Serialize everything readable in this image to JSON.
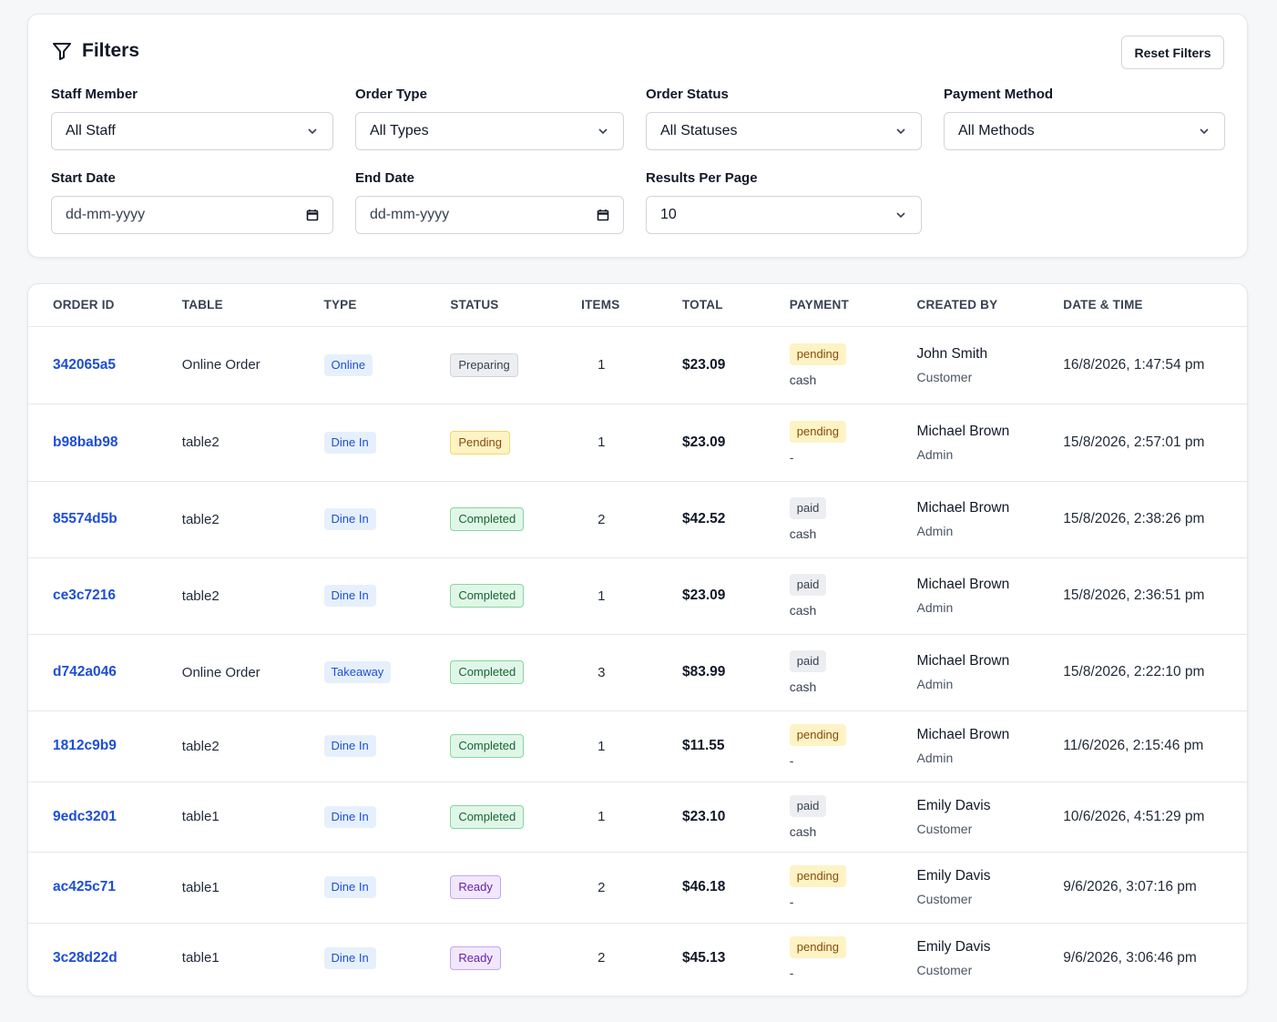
{
  "filters": {
    "title": "Filters",
    "reset_label": "Reset Filters",
    "staff": {
      "label": "Staff Member",
      "value": "All Staff"
    },
    "order_type": {
      "label": "Order Type",
      "value": "All Types"
    },
    "order_status": {
      "label": "Order Status",
      "value": "All Statuses"
    },
    "payment_method": {
      "label": "Payment Method",
      "value": "All Methods"
    },
    "start_date": {
      "label": "Start Date",
      "placeholder": "dd-mm-yyyy"
    },
    "end_date": {
      "label": "End Date",
      "placeholder": "dd-mm-yyyy"
    },
    "per_page": {
      "label": "Results Per Page",
      "value": "10"
    }
  },
  "table": {
    "headers": [
      "ORDER ID",
      "TABLE",
      "TYPE",
      "STATUS",
      "ITEMS",
      "TOTAL",
      "PAYMENT",
      "CREATED BY",
      "DATE & TIME"
    ],
    "rows": [
      {
        "id": "342065a5",
        "table": "Online Order",
        "type": "Online",
        "status": "Preparing",
        "status_color": "gray",
        "items": "1",
        "total": "$23.09",
        "payment_status": "pending",
        "payment_method": "cash",
        "created_by": "John Smith",
        "role": "Customer",
        "datetime": "16/8/2026, 1:47:54 pm"
      },
      {
        "id": "b98bab98",
        "table": "table2",
        "type": "Dine In",
        "status": "Pending",
        "status_color": "yellow",
        "items": "1",
        "total": "$23.09",
        "payment_status": "pending",
        "payment_method": "-",
        "created_by": "Michael Brown",
        "role": "Admin",
        "datetime": "15/8/2026, 2:57:01 pm"
      },
      {
        "id": "85574d5b",
        "table": "table2",
        "type": "Dine In",
        "status": "Completed",
        "status_color": "green",
        "items": "2",
        "total": "$42.52",
        "payment_status": "paid",
        "payment_method": "cash",
        "created_by": "Michael Brown",
        "role": "Admin",
        "datetime": "15/8/2026, 2:38:26 pm"
      },
      {
        "id": "ce3c7216",
        "table": "table2",
        "type": "Dine In",
        "status": "Completed",
        "status_color": "green",
        "items": "1",
        "total": "$23.09",
        "payment_status": "paid",
        "payment_method": "cash",
        "created_by": "Michael Brown",
        "role": "Admin",
        "datetime": "15/8/2026, 2:36:51 pm"
      },
      {
        "id": "d742a046",
        "table": "Online Order",
        "type": "Takeaway",
        "status": "Completed",
        "status_color": "green",
        "items": "3",
        "total": "$83.99",
        "payment_status": "paid",
        "payment_method": "cash",
        "created_by": "Michael Brown",
        "role": "Admin",
        "datetime": "15/8/2026, 2:22:10 pm"
      },
      {
        "id": "1812c9b9",
        "table": "table2",
        "type": "Dine In",
        "status": "Completed",
        "status_color": "green",
        "items": "1",
        "total": "$11.55",
        "payment_status": "pending",
        "payment_method": "-",
        "created_by": "Michael Brown",
        "role": "Admin",
        "datetime": "11/6/2026, 2:15:46 pm"
      },
      {
        "id": "9edc3201",
        "table": "table1",
        "type": "Dine In",
        "status": "Completed",
        "status_color": "green",
        "items": "1",
        "total": "$23.10",
        "payment_status": "paid",
        "payment_method": "cash",
        "created_by": "Emily Davis",
        "role": "Customer",
        "datetime": "10/6/2026, 4:51:29 pm"
      },
      {
        "id": "ac425c71",
        "table": "table1",
        "type": "Dine In",
        "status": "Ready",
        "status_color": "purple",
        "items": "2",
        "total": "$46.18",
        "payment_status": "pending",
        "payment_method": "-",
        "created_by": "Emily Davis",
        "role": "Customer",
        "datetime": "9/6/2026, 3:07:16 pm"
      },
      {
        "id": "3c28d22d",
        "table": "table1",
        "type": "Dine In",
        "status": "Ready",
        "status_color": "purple",
        "items": "2",
        "total": "$45.13",
        "payment_status": "pending",
        "payment_method": "-",
        "created_by": "Emily Davis",
        "role": "Customer",
        "datetime": "9/6/2026, 3:06:46 pm"
      }
    ]
  }
}
